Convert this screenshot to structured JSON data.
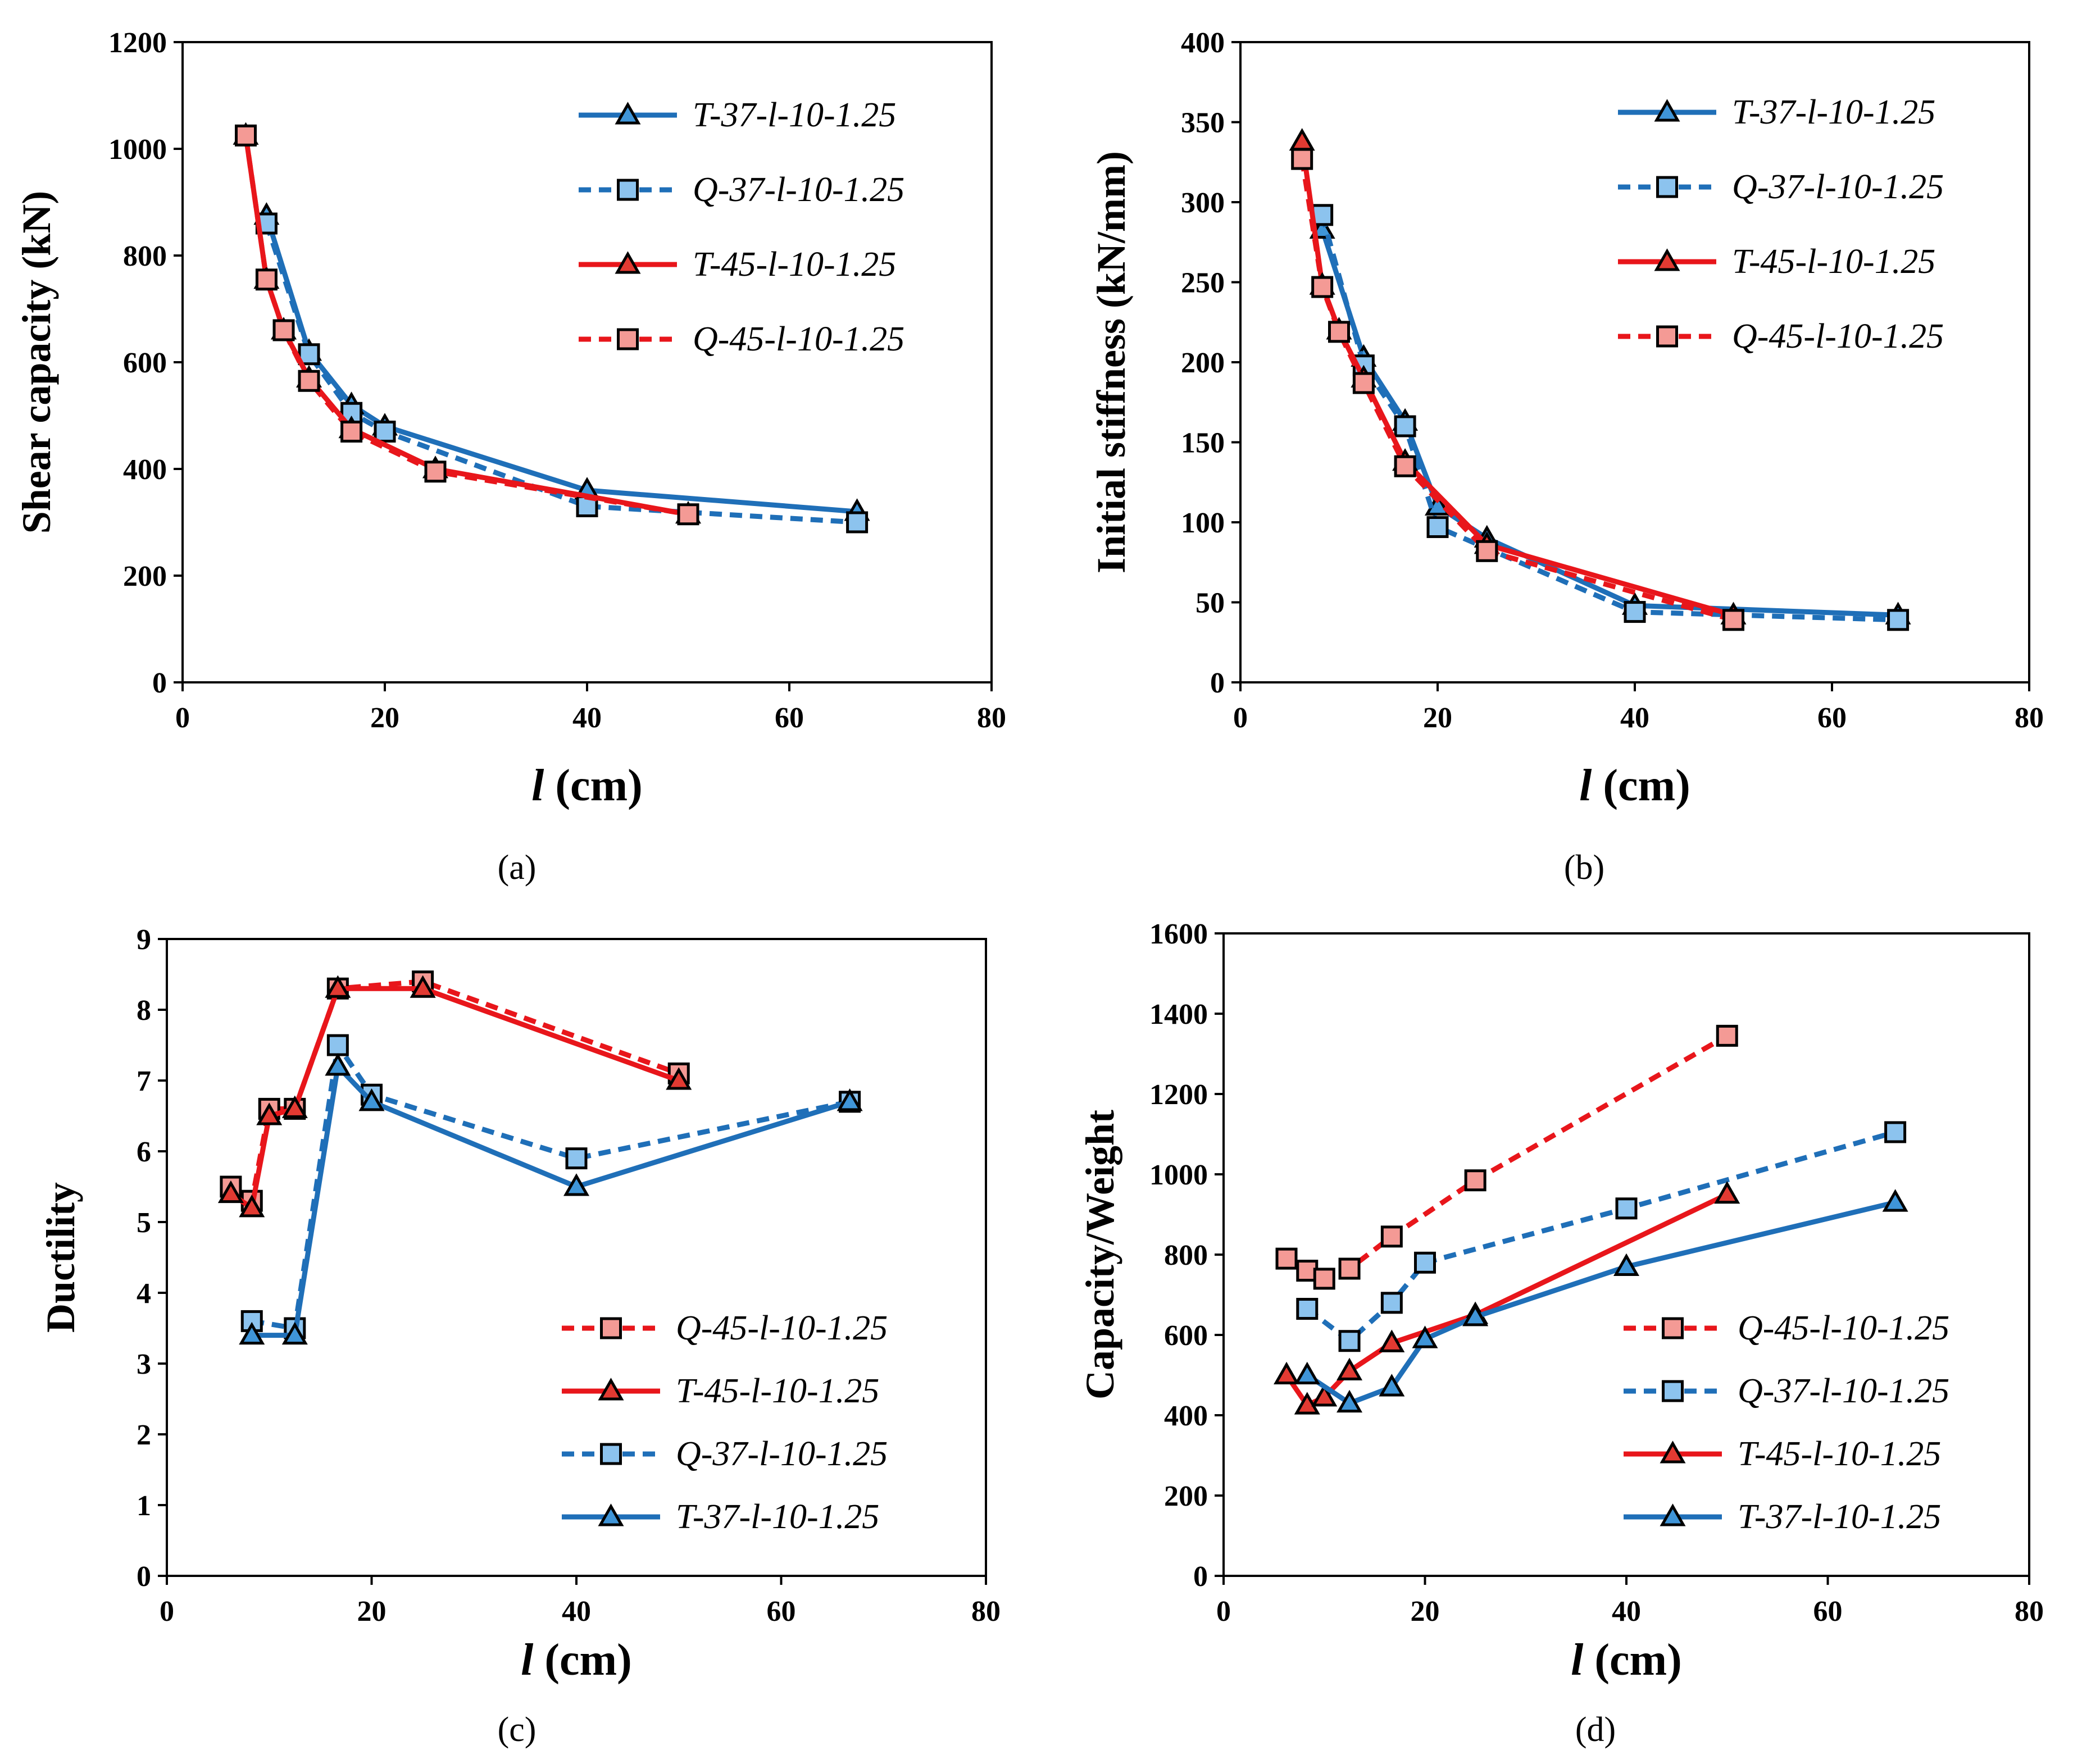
{
  "colors": {
    "blue": "#1f6fb8",
    "red": "#e8161b",
    "blue_fill": "#3f95d8",
    "blue_fill_light": "#8cc3ee",
    "red_fill": "#e23a32",
    "red_fill_light": "#f49a95"
  },
  "chart_data": [
    {
      "id": "a",
      "type": "line",
      "caption": "(a)",
      "ylabel": "Shear capacity (kN)",
      "xlabel_italic": "l",
      "xlabel_rest": " (cm)",
      "xlim": [
        0,
        80
      ],
      "ylim": [
        0,
        1200
      ],
      "xticks": [
        0,
        20,
        40,
        60,
        80
      ],
      "yticks": [
        0,
        200,
        400,
        600,
        800,
        1000,
        1200
      ],
      "legend_position": "top-right",
      "series": [
        {
          "name": "T-37-l-10-1.25",
          "style": "solid",
          "color": "blue",
          "marker": "triangle",
          "x": [
            8.3,
            12.5,
            16.7,
            20,
            40,
            66.7
          ],
          "y": [
            875,
            620,
            520,
            480,
            360,
            320
          ]
        },
        {
          "name": "Q-37-l-10-1.25",
          "style": "dashed",
          "color": "blue",
          "marker": "square",
          "x": [
            8.3,
            12.5,
            16.7,
            20,
            40,
            66.7
          ],
          "y": [
            860,
            615,
            505,
            470,
            330,
            300
          ]
        },
        {
          "name": "T-45-l-10-1.25",
          "style": "solid",
          "color": "red",
          "marker": "triangle",
          "x": [
            6.25,
            8.3,
            10,
            12.5,
            16.7,
            25,
            50
          ],
          "y": [
            1025,
            755,
            660,
            570,
            475,
            400,
            315
          ]
        },
        {
          "name": "Q-45-l-10-1.25",
          "style": "dashed",
          "color": "red",
          "marker": "square",
          "x": [
            6.25,
            8.3,
            10,
            12.5,
            16.7,
            25,
            50
          ],
          "y": [
            1025,
            755,
            660,
            565,
            470,
            395,
            315
          ]
        }
      ]
    },
    {
      "id": "b",
      "type": "line",
      "caption": "(b)",
      "ylabel": "Initial stiffness (kN/mm)",
      "xlabel_italic": "l",
      "xlabel_rest": " (cm)",
      "xlim": [
        0,
        80
      ],
      "ylim": [
        0,
        400
      ],
      "xticks": [
        0,
        20,
        40,
        60,
        80
      ],
      "yticks": [
        0,
        50,
        100,
        150,
        200,
        250,
        300,
        350,
        400
      ],
      "legend_position": "top-right",
      "series": [
        {
          "name": "T-37-l-10-1.25",
          "style": "solid",
          "color": "blue",
          "marker": "triangle",
          "x": [
            8.3,
            12.5,
            16.7,
            20,
            25,
            40,
            66.7
          ],
          "y": [
            283,
            203,
            163,
            110,
            90,
            48,
            42
          ]
        },
        {
          "name": "Q-37-l-10-1.25",
          "style": "dashed",
          "color": "blue",
          "marker": "square",
          "x": [
            8.3,
            12.5,
            16.7,
            20,
            40,
            66.7
          ],
          "y": [
            292,
            198,
            160,
            97,
            44,
            39
          ]
        },
        {
          "name": "T-45-l-10-1.25",
          "style": "solid",
          "color": "red",
          "marker": "triangle",
          "x": [
            6.25,
            8.3,
            10,
            12.5,
            16.7,
            25,
            50
          ],
          "y": [
            338,
            248,
            220,
            190,
            138,
            86,
            42
          ]
        },
        {
          "name": "Q-45-l-10-1.25",
          "style": "dashed",
          "color": "red",
          "marker": "square",
          "x": [
            6.25,
            8.3,
            10,
            12.5,
            16.7,
            25,
            50
          ],
          "y": [
            327,
            247,
            219,
            187,
            135,
            82,
            39
          ]
        }
      ]
    },
    {
      "id": "c",
      "type": "line",
      "caption": "(c)",
      "ylabel": "Ductility",
      "xlabel_italic": "l",
      "xlabel_rest": " (cm)",
      "xlim": [
        0,
        80
      ],
      "ylim": [
        0,
        9
      ],
      "xticks": [
        0,
        20,
        40,
        60,
        80
      ],
      "yticks": [
        0,
        1,
        2,
        3,
        4,
        5,
        6,
        7,
        8,
        9
      ],
      "legend_position": "bottom-right",
      "series": [
        {
          "name": "Q-45-l-10-1.25",
          "style": "dashed",
          "color": "red",
          "marker": "square",
          "x": [
            6.25,
            8.3,
            10,
            12.5,
            16.7,
            25,
            50
          ],
          "y": [
            5.5,
            5.3,
            6.6,
            6.6,
            8.3,
            8.4,
            7.1
          ]
        },
        {
          "name": "T-45-l-10-1.25",
          "style": "solid",
          "color": "red",
          "marker": "triangle",
          "x": [
            6.25,
            8.3,
            10,
            12.5,
            16.7,
            25,
            50
          ],
          "y": [
            5.4,
            5.2,
            6.5,
            6.6,
            8.3,
            8.3,
            7.0
          ]
        },
        {
          "name": "Q-37-l-10-1.25",
          "style": "dashed",
          "color": "blue",
          "marker": "square",
          "x": [
            8.3,
            12.5,
            16.7,
            20,
            40,
            66.7
          ],
          "y": [
            3.6,
            3.5,
            7.5,
            6.8,
            5.9,
            6.7
          ]
        },
        {
          "name": "T-37-l-10-1.25",
          "style": "solid",
          "color": "blue",
          "marker": "triangle",
          "x": [
            8.3,
            12.5,
            16.7,
            20,
            40,
            66.7
          ],
          "y": [
            3.4,
            3.4,
            7.2,
            6.7,
            5.5,
            6.7
          ]
        }
      ]
    },
    {
      "id": "d",
      "type": "line",
      "caption": "(d)",
      "ylabel": "Capacity/Weight",
      "xlabel_italic": "l",
      "xlabel_rest": " (cm)",
      "xlim": [
        0,
        80
      ],
      "ylim": [
        0,
        1600
      ],
      "xticks": [
        0,
        20,
        40,
        60,
        80
      ],
      "yticks": [
        0,
        200,
        400,
        600,
        800,
        1000,
        1200,
        1400,
        1600
      ],
      "legend_position": "bottom-right",
      "series": [
        {
          "name": "Q-45-l-10-1.25",
          "style": "dashed",
          "color": "red",
          "marker": "square",
          "x": [
            6.25,
            8.3,
            10,
            12.5,
            16.7,
            25,
            50
          ],
          "y": [
            790,
            760,
            740,
            765,
            845,
            985,
            1345
          ]
        },
        {
          "name": "Q-37-l-10-1.25",
          "style": "dashed",
          "color": "blue",
          "marker": "square",
          "x": [
            8.3,
            12.5,
            16.7,
            20,
            40,
            66.7
          ],
          "y": [
            665,
            585,
            680,
            780,
            915,
            1105
          ]
        },
        {
          "name": "T-45-l-10-1.25",
          "style": "solid",
          "color": "red",
          "marker": "triangle",
          "x": [
            6.25,
            8.3,
            10,
            12.5,
            16.7,
            25,
            50
          ],
          "y": [
            500,
            425,
            445,
            510,
            580,
            650,
            950
          ]
        },
        {
          "name": "T-37-l-10-1.25",
          "style": "solid",
          "color": "blue",
          "marker": "triangle",
          "x": [
            8.3,
            12.5,
            16.7,
            20,
            25,
            40,
            66.7
          ],
          "y": [
            500,
            430,
            470,
            590,
            645,
            770,
            930
          ]
        }
      ]
    }
  ]
}
